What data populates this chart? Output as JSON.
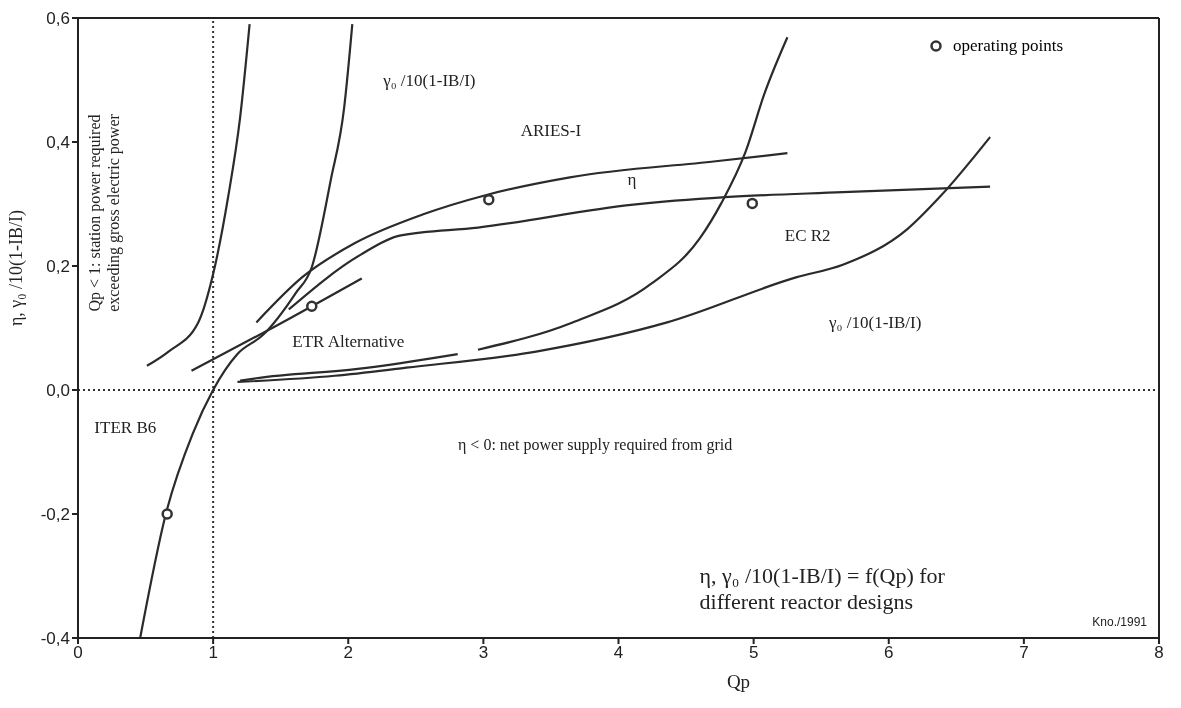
{
  "chart_data": {
    "type": "line",
    "xlabel": "Qp",
    "ylabel": "η, γ₀ /10(1-IB/I)",
    "xlim": [
      0,
      8
    ],
    "xticks": [
      0,
      1,
      2,
      3,
      4,
      5,
      6,
      7,
      8
    ],
    "ylim": [
      -0.4,
      0.6
    ],
    "yticks": [
      {
        "value": -0.4,
        "label": "-0,4"
      },
      {
        "value": -0.2,
        "label": "-0,2"
      },
      {
        "value": 0,
        "label": "0,0"
      },
      {
        "value": 0.2,
        "label": "0,2"
      },
      {
        "value": 0.4,
        "label": "0,4"
      },
      {
        "value": 0.6,
        "label": "0,6"
      }
    ],
    "grid": false,
    "legend": "top right",
    "marker": "none",
    "line_style": "solid",
    "series": [
      {
        "color": "#2b2b2b",
        "x": [
          0.51,
          0.67,
          0.89,
          1.0,
          1.11,
          1.2,
          1.27
        ],
        "values": [
          0.039,
          0.062,
          0.109,
          0.187,
          0.31,
          0.44,
          0.59
        ]
      },
      {
        "color": "#2b2b2b",
        "x": [
          0.46,
          0.65,
          0.85,
          1.0,
          1.18,
          1.37,
          1.61,
          1.73,
          1.87,
          1.97,
          2.03
        ],
        "values": [
          -0.4,
          -0.2,
          -0.07,
          0.0,
          0.058,
          0.089,
          0.156,
          0.198,
          0.338,
          0.456,
          0.59
        ]
      },
      {
        "color": "#2b2b2b",
        "x": [
          0.84,
          1.42,
          2.1
        ],
        "values": [
          0.031,
          0.098,
          0.18
        ]
      },
      {
        "color": "#2b2b2b",
        "x": [
          1.32,
          1.66,
          2.05,
          2.55,
          3.03,
          3.64,
          4.72,
          5.25
        ],
        "values": [
          0.109,
          0.182,
          0.237,
          0.283,
          0.315,
          0.343,
          0.369,
          0.382
        ]
      },
      {
        "color": "#2b2b2b",
        "x": [
          1.56,
          2.09,
          2.38,
          2.96,
          4.11,
          4.79,
          5.66,
          6.75
        ],
        "values": [
          0.13,
          0.218,
          0.249,
          0.262,
          0.299,
          0.311,
          0.319,
          0.328
        ]
      },
      {
        "color": "#2b2b2b",
        "x": [
          2.96,
          3.66,
          4.24,
          4.6,
          4.76,
          4.94,
          5.08,
          5.25
        ],
        "values": [
          0.065,
          0.109,
          0.171,
          0.244,
          0.301,
          0.384,
          0.478,
          0.569
        ]
      },
      {
        "color": "#2b2b2b",
        "x": [
          1.18,
          1.9,
          2.43,
          3.39,
          4.36,
          5.32,
          5.66,
          6.14,
          6.38,
          6.75
        ],
        "values": [
          0.013,
          0.023,
          0.036,
          0.062,
          0.109,
          0.182,
          0.202,
          0.26,
          0.312,
          0.408
        ]
      },
      {
        "color": "#2b2b2b",
        "x": [
          1.2,
          1.32,
          2.07,
          2.81
        ],
        "values": [
          0.015,
          0.019,
          0.034,
          0.058
        ]
      },
      {
        "type": "scatter",
        "name": "operating points",
        "color": "#333333",
        "marker": "circle",
        "x": [
          0.66,
          1.73,
          3.04,
          4.99
        ],
        "values": [
          -0.2,
          0.135,
          0.307,
          0.301
        ]
      }
    ],
    "ref_lines": [
      {
        "axis": "y",
        "value": 0,
        "line_style": "dotted",
        "color": "#333333"
      },
      {
        "axis": "x",
        "value": 1,
        "line_style": "dotted",
        "color": "#333333"
      }
    ],
    "annotations": [
      "ARIES-I",
      "η",
      "EC R2",
      "γ₀ /10(1-IB/I)",
      "γ₀ /10(1-IB/I)",
      "ETR Alternative",
      "ITER B6",
      "Qp < 1: station power required exceeding gross electric power",
      "η < 0: net power supply required from grid",
      "η, γ₀ /10(1-IB/I) = f(Qp) for different reactor designs",
      "Kno./1991"
    ]
  }
}
